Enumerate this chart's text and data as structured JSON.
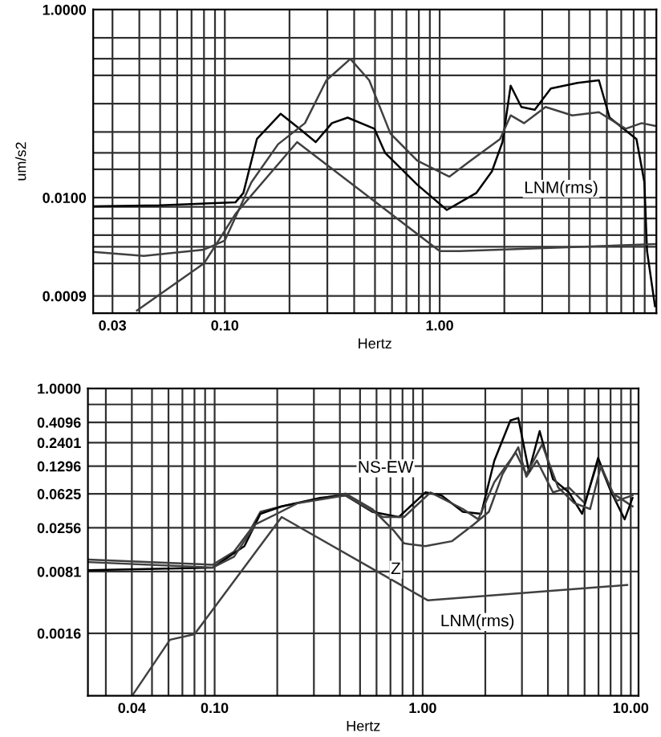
{
  "chart_data": [
    {
      "type": "line",
      "ylabel": "um/s2",
      "xlabel": "Hertz",
      "log": "xy",
      "grid": true,
      "marker": "none",
      "line_style": "solid",
      "xlim": [
        0.0244,
        10.2
      ],
      "ylim": [
        0.00059,
        1.0
      ],
      "xticks": [
        {
          "value": 0.03,
          "label": "0.03"
        },
        {
          "value": 0.04,
          "label": null
        },
        {
          "value": 0.05,
          "label": null
        },
        {
          "value": 0.06,
          "label": null
        },
        {
          "value": 0.07,
          "label": null
        },
        {
          "value": 0.08,
          "label": null
        },
        {
          "value": 0.09,
          "label": null
        },
        {
          "value": 0.1,
          "label": "0.10"
        },
        {
          "value": 0.2,
          "label": null
        },
        {
          "value": 0.3,
          "label": null
        },
        {
          "value": 0.4,
          "label": null
        },
        {
          "value": 0.5,
          "label": null
        },
        {
          "value": 0.6,
          "label": null
        },
        {
          "value": 0.7,
          "label": null
        },
        {
          "value": 0.8,
          "label": null
        },
        {
          "value": 0.9,
          "label": null
        },
        {
          "value": 1.0,
          "label": "1.00"
        },
        {
          "value": 2,
          "label": null
        },
        {
          "value": 3,
          "label": null
        },
        {
          "value": 4,
          "label": null
        },
        {
          "value": 5,
          "label": null
        },
        {
          "value": 6,
          "label": null
        },
        {
          "value": 7,
          "label": null
        },
        {
          "value": 8,
          "label": null
        },
        {
          "value": 9,
          "label": null
        }
      ],
      "yticks": [
        {
          "value": 1.0,
          "label": "1.0000"
        },
        {
          "value": 0.5,
          "label": null
        },
        {
          "value": 0.3,
          "label": null
        },
        {
          "value": 0.2,
          "label": null
        },
        {
          "value": 0.1,
          "label": null
        },
        {
          "value": 0.05,
          "label": null
        },
        {
          "value": 0.03,
          "label": null
        },
        {
          "value": 0.02,
          "label": null
        },
        {
          "value": 0.01,
          "label": "0.0100"
        },
        {
          "value": 0.008,
          "label": null
        },
        {
          "value": 0.006,
          "label": null
        },
        {
          "value": 0.004,
          "label": null
        },
        {
          "value": 0.003,
          "label": null
        },
        {
          "value": 0.002,
          "label": null
        },
        {
          "value": 0.0009,
          "label": "0.0009"
        }
      ],
      "series": [
        {
          "color": "#000000",
          "x": [
            0.0244,
            0.05,
            0.112,
            0.122,
            0.141,
            0.182,
            0.223,
            0.265,
            0.315,
            0.373,
            0.497,
            0.557,
            0.787,
            1.08,
            1.48,
            1.75,
            1.96,
            2.14,
            2.4,
            2.77,
            3.29,
            4.38,
            5.51,
            6.18,
            8.24,
            8.97,
            9.23,
            10.05
          ],
          "values": [
            0.0081,
            0.0083,
            0.0089,
            0.0112,
            0.042,
            0.078,
            0.054,
            0.039,
            0.062,
            0.071,
            0.054,
            0.03,
            0.0137,
            0.0074,
            0.0112,
            0.019,
            0.039,
            0.155,
            0.092,
            0.086,
            0.145,
            0.166,
            0.177,
            0.071,
            0.042,
            0.0146,
            0.0027,
            0.0007
          ]
        },
        {
          "color": "#404040",
          "x": [
            0.0244,
            0.042,
            0.08,
            0.1,
            0.133,
            0.177,
            0.236,
            0.297,
            0.384,
            0.47,
            0.59,
            0.787,
            1.11,
            1.39,
            1.91,
            2.14,
            2.47,
            3.11,
            4.14,
            5.51,
            7.34,
            8.71,
            10.05
          ],
          "values": [
            0.00265,
            0.0024,
            0.0028,
            0.0035,
            0.0146,
            0.037,
            0.062,
            0.177,
            0.299,
            0.177,
            0.048,
            0.0247,
            0.0167,
            0.0247,
            0.042,
            0.075,
            0.062,
            0.092,
            0.075,
            0.081,
            0.054,
            0.062,
            0.058
          ]
        },
        {
          "color": "#404040",
          "x": [
            0.039,
            0.08,
            0.112,
            0.217,
            1.0,
            1.24,
            10.05
          ],
          "values": [
            0.00063,
            0.002,
            0.0067,
            0.039,
            0.0027,
            0.0027,
            0.0032
          ]
        }
      ],
      "annotations": [
        "LNM(rms)"
      ]
    },
    {
      "type": "line",
      "xlabel": "Hertz",
      "log": "xy",
      "grid": true,
      "marker": "none",
      "line_style": "solid",
      "xlim": [
        0.0246,
        10.9
      ],
      "ylim": [
        0.00031,
        1.0
      ],
      "xticks": [
        {
          "value": 0.03,
          "label": null
        },
        {
          "value": 0.04,
          "label": "0.04"
        },
        {
          "value": 0.05,
          "label": null
        },
        {
          "value": 0.06,
          "label": null
        },
        {
          "value": 0.07,
          "label": null
        },
        {
          "value": 0.08,
          "label": null
        },
        {
          "value": 0.09,
          "label": null
        },
        {
          "value": 0.1,
          "label": "0.10"
        },
        {
          "value": 0.2,
          "label": null
        },
        {
          "value": 0.3,
          "label": null
        },
        {
          "value": 0.4,
          "label": null
        },
        {
          "value": 0.5,
          "label": null
        },
        {
          "value": 0.6,
          "label": null
        },
        {
          "value": 0.7,
          "label": null
        },
        {
          "value": 0.8,
          "label": null
        },
        {
          "value": 0.9,
          "label": null
        },
        {
          "value": 1.0,
          "label": "1.00"
        },
        {
          "value": 2,
          "label": null
        },
        {
          "value": 3,
          "label": null
        },
        {
          "value": 4,
          "label": null
        },
        {
          "value": 5,
          "label": null
        },
        {
          "value": 6,
          "label": null
        },
        {
          "value": 7,
          "label": null
        },
        {
          "value": 8,
          "label": null
        },
        {
          "value": 9,
          "label": null
        },
        {
          "value": 10,
          "label": "10.00"
        }
      ],
      "yticks": [
        {
          "value": 1.0,
          "label": "1.0000"
        },
        {
          "value": 0.6561,
          "label": null
        },
        {
          "value": 0.4096,
          "label": "0.4096"
        },
        {
          "value": 0.2401,
          "label": "0.2401"
        },
        {
          "value": 0.1296,
          "label": "0.1296"
        },
        {
          "value": 0.0625,
          "label": "0.0625"
        },
        {
          "value": 0.0256,
          "label": "0.0256"
        },
        {
          "value": 0.0081,
          "label": "0.0081"
        },
        {
          "value": 0.0016,
          "label": "0.0016"
        }
      ],
      "series": [
        {
          "color": "#404040",
          "x": [
            0.0246,
            0.098,
            0.124,
            0.148,
            0.166,
            0.21,
            0.282,
            0.426,
            0.572,
            0.724,
            0.814,
            1.03,
            1.38,
            1.75,
            2.08,
            2.42,
            2.88,
            3.15,
            3.54,
            4.23,
            5.04,
            6.01,
            6.97,
            8.07,
            10.2
          ],
          "values": [
            0.0111,
            0.0097,
            0.0137,
            0.024,
            0.039,
            0.045,
            0.052,
            0.063,
            0.042,
            0.024,
            0.017,
            0.0158,
            0.018,
            0.0277,
            0.039,
            0.105,
            0.213,
            0.098,
            0.15,
            0.065,
            0.074,
            0.049,
            0.15,
            0.065,
            0.045
          ]
        },
        {
          "color": "#000000",
          "x": [
            0.0246,
            0.098,
            0.139,
            0.166,
            0.21,
            0.318,
            0.426,
            0.572,
            0.768,
            1.03,
            1.23,
            1.56,
            1.91,
            2.21,
            2.64,
            2.88,
            3.24,
            3.65,
            4.23,
            5.04,
            5.84,
            6.97,
            8.07,
            9.35,
            10.2
          ],
          "values": [
            0.0084,
            0.009,
            0.0158,
            0.037,
            0.045,
            0.056,
            0.06,
            0.039,
            0.034,
            0.065,
            0.06,
            0.039,
            0.037,
            0.15,
            0.43,
            0.46,
            0.113,
            0.325,
            0.092,
            0.065,
            0.037,
            0.161,
            0.065,
            0.032,
            0.056
          ]
        },
        {
          "color": "#404040",
          "x": [
            0.0246,
            0.098,
            0.124,
            0.157,
            0.199,
            0.251,
            0.426,
            0.643,
            0.814,
            1.09,
            1.56,
            1.85,
            2.21,
            2.8,
            3.15,
            3.75,
            4.48,
            5.35,
            6.38,
            7.18,
            8.55,
            10.2
          ],
          "values": [
            0.0104,
            0.009,
            0.012,
            0.028,
            0.037,
            0.049,
            0.06,
            0.034,
            0.034,
            0.065,
            0.042,
            0.032,
            0.085,
            0.185,
            0.105,
            0.229,
            0.074,
            0.049,
            0.042,
            0.13,
            0.052,
            0.06
          ]
        },
        {
          "color": "#404040",
          "x": [
            0.0405,
            0.061,
            0.08,
            0.21,
            1.06,
            9.62
          ],
          "values": [
            0.00032,
            0.00135,
            0.00156,
            0.034,
            0.0038,
            0.0057
          ]
        }
      ],
      "annotations": [
        "NS-EW",
        "Z",
        "LNM(rms)"
      ]
    }
  ]
}
